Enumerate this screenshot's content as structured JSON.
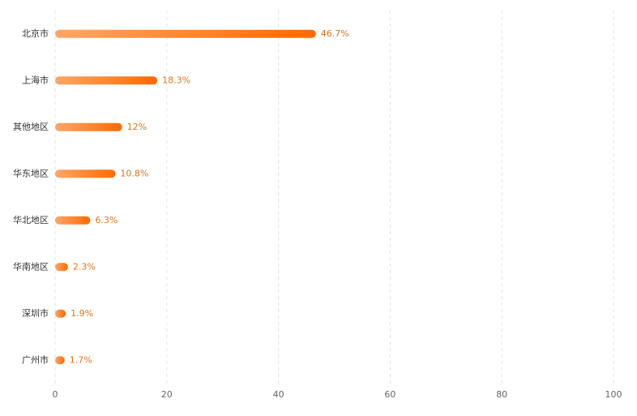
{
  "chart_data": {
    "type": "hbar",
    "categories": [
      "北京市",
      "上海市",
      "其他地区",
      "华东地区",
      "华北地区",
      "华南地区",
      "深圳市",
      "广州市"
    ],
    "values": [
      46.7,
      18.3,
      12,
      10.8,
      6.3,
      2.3,
      1.9,
      1.7
    ],
    "value_labels": [
      "46.7%",
      "18.3%",
      "12%",
      "10.8%",
      "6.3%",
      "2.3%",
      "1.9%",
      "1.7%"
    ],
    "color": "#ff6a00",
    "xlim": [
      0,
      100
    ],
    "xticks": [
      0,
      20,
      40,
      60,
      80,
      100
    ],
    "grid": true
  }
}
